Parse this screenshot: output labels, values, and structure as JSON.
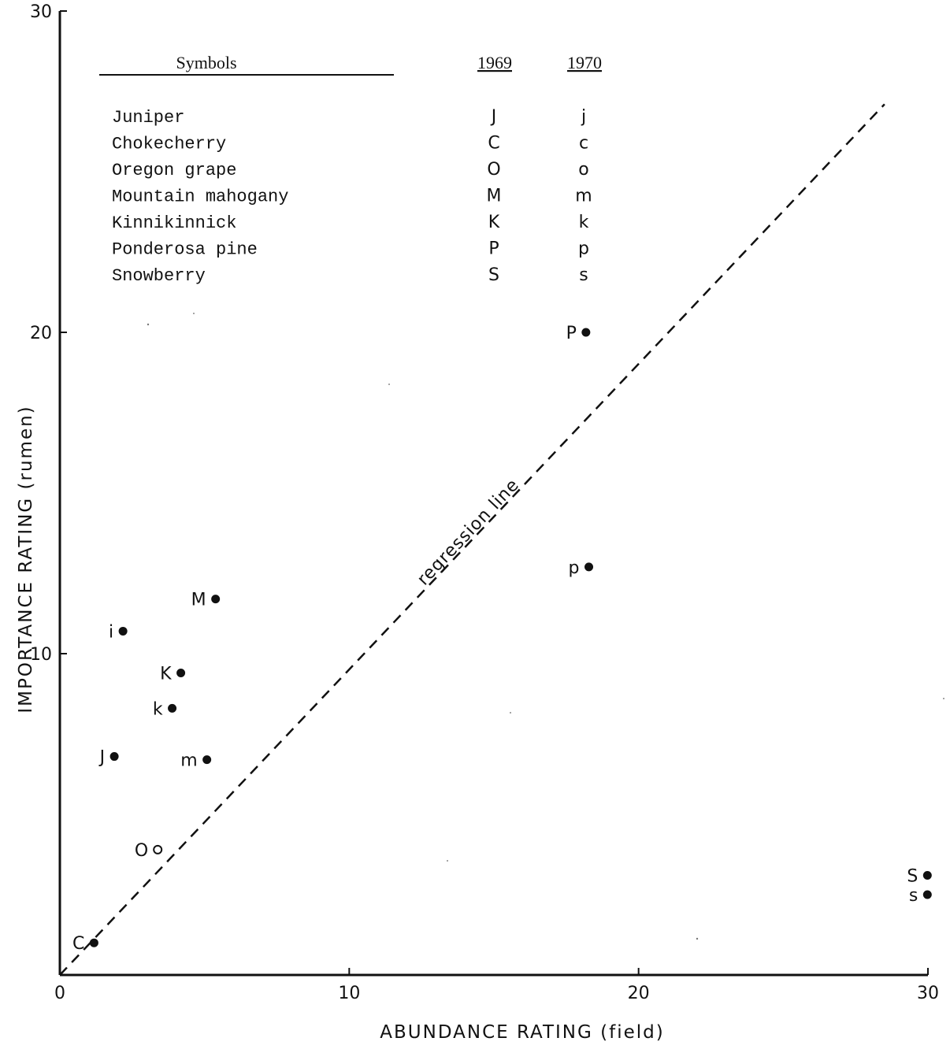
{
  "chart_data": {
    "type": "scatter",
    "xlabel": "ABUNDANCE RATING (field)",
    "ylabel": "IMPORTANCE RATING (rumen)",
    "xlim": [
      0,
      30
    ],
    "ylim": [
      0,
      30
    ],
    "x_ticks": [
      "0",
      "10",
      "20",
      "30"
    ],
    "y_ticks": [
      "10",
      "20",
      "30"
    ],
    "grid": false,
    "legend": {
      "header": "Symbols",
      "year_1": "1969",
      "year_2": "1970",
      "entries": [
        {
          "name": "Juniper",
          "sym_1969": "J",
          "sym_1970": "j"
        },
        {
          "name": "Chokecherry",
          "sym_1969": "C",
          "sym_1970": "c"
        },
        {
          "name": "Oregon grape",
          "sym_1969": "O",
          "sym_1970": "o"
        },
        {
          "name": "Mountain mahogany",
          "sym_1969": "M",
          "sym_1970": "m"
        },
        {
          "name": "Kinnikinnick",
          "sym_1969": "K",
          "sym_1970": "k"
        },
        {
          "name": "Ponderosa pine",
          "sym_1969": "P",
          "sym_1970": "p"
        },
        {
          "name": "Snowberry",
          "sym_1969": "S",
          "sym_1970": "s"
        }
      ]
    },
    "points": [
      {
        "label": "P",
        "x": 17.8,
        "y": 20.0
      },
      {
        "label": "p",
        "x": 17.9,
        "y": 12.7
      },
      {
        "label": "M",
        "x": 5.0,
        "y": 11.7
      },
      {
        "label": "i",
        "x": 1.8,
        "y": 10.7
      },
      {
        "label": "K",
        "x": 3.8,
        "y": 9.4
      },
      {
        "label": "k",
        "x": 3.5,
        "y": 8.3
      },
      {
        "label": "J",
        "x": 1.5,
        "y": 6.8
      },
      {
        "label": "m",
        "x": 4.7,
        "y": 6.7
      },
      {
        "label": "O",
        "x": 3.0,
        "y": 3.9
      },
      {
        "label": "C",
        "x": 0.8,
        "y": 1.0
      },
      {
        "label": "S",
        "x": 29.6,
        "y": 3.1
      },
      {
        "label": "s",
        "x": 29.6,
        "y": 2.5
      }
    ],
    "regression_line": {
      "label": "regression line",
      "x": [
        0,
        28.5
      ],
      "y": [
        0,
        27.1
      ]
    }
  }
}
